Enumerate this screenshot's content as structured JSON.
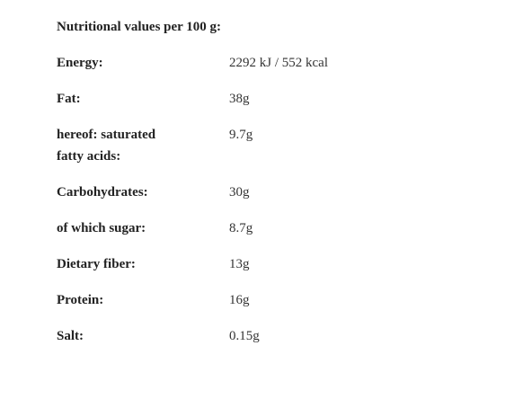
{
  "title": "Nutritional values per 100 g:",
  "rows": [
    [
      "Energy:",
      "2292 kJ / 552 kcal"
    ],
    [
      "Fat:",
      "38g"
    ],
    [
      "hereof: saturated fatty acids:",
      "9.7g"
    ],
    [
      "Carbohydrates:",
      "30g"
    ],
    [
      "of which sugar:",
      "8.7g"
    ],
    [
      "Dietary fiber:",
      "13g"
    ],
    [
      "Protein:",
      "16g"
    ],
    [
      "Salt:",
      "0.15g"
    ]
  ]
}
